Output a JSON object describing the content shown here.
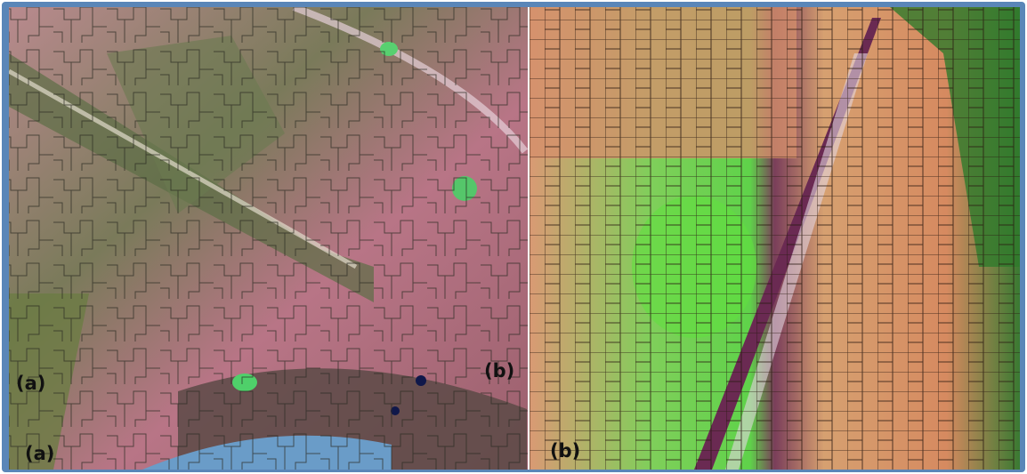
{
  "panel_a": {
    "labels": [
      "(a)",
      "(a)"
    ]
  },
  "panel_b": {
    "labels": [
      "(b)",
      "(b)"
    ]
  }
}
